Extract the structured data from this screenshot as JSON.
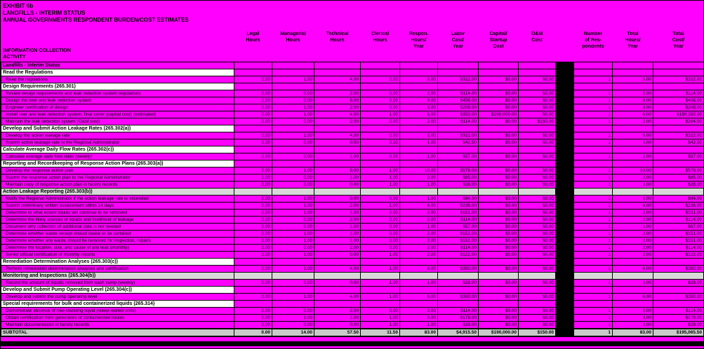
{
  "title_block": {
    "line1": "EXHIBIT 6b",
    "line2": "LANDFILLS - INTERIM STATUS",
    "line3": "ANNUAL GOVERNMENTS RESPONDENT BURDEN/COST ESTIMATES"
  },
  "columns": {
    "activity": "INFORMATION COLLECTION\nACTIVITY",
    "headers": [
      "Legal\nHours",
      "Managerial\nHours",
      "Technical\nHours",
      "Clerical\nHours",
      "Respon.\nHours/\nYear",
      "Labor\nCost/\nYear",
      "Capital/\nStartup\nCost",
      "O&M\nCost",
      "Number\nof Res-\npondents",
      "Total\nHours/\nYear",
      "Total\nCost/\nYear"
    ]
  },
  "colors": {
    "background": "#FF00FF",
    "section_white": "#FFFFFF",
    "section_gray": "#D8D8D8",
    "subtotal_gray": "#C9C9C9",
    "divider_band": "#000000"
  },
  "rows": [
    {
      "type": "title",
      "label": "Landfills - Interim Status"
    },
    {
      "type": "section",
      "tone": "white",
      "label": "Read the Regulations"
    },
    {
      "type": "data",
      "label": "Read the regulations",
      "values": [
        "0.00",
        "1.00",
        "4.00",
        "0.00",
        "5.00",
        "$322.00",
        "$0.00",
        "$0.00",
        "1",
        "5.00",
        "$322.00"
      ]
    },
    {
      "type": "section",
      "tone": "white",
      "label": "Design Requirements (265.301)"
    },
    {
      "type": "data",
      "label": "Review design requirements and leak detection system regulations",
      "values": [
        "0.00",
        "0.00",
        "2.00",
        "0.00",
        "2.00",
        "$114.00",
        "$0.00",
        "$0.00",
        "1",
        "2.00",
        "$114.00"
      ]
    },
    {
      "type": "data",
      "label": "Design the liner and leak detection system",
      "values": [
        "0.00",
        "0.00",
        "8.00",
        "0.00",
        "8.00",
        "$456.00",
        "$0.00",
        "$0.00",
        "1",
        "8.00",
        "$456.00"
      ]
    },
    {
      "type": "data",
      "label": "Engineer certification of design",
      "values": [
        "0.00",
        "1.00",
        "2.00",
        "0.00",
        "3.00",
        "$208.00",
        "$0.00",
        "$0.00",
        "1",
        "3.00",
        "$208.00"
      ]
    },
    {
      "type": "data",
      "label": "Install liner and leak detection system, final cover (capital cost) (estimated)",
      "values": [
        "0.00",
        "1.00",
        "4.00",
        "1.00",
        "6.00",
        "$350.00",
        "$190,000.00",
        "$0.00",
        "1",
        "6.00",
        "$190,350.00"
      ]
    },
    {
      "type": "data",
      "label": "Maintain the leak detection system (O&M cost)",
      "values": [
        "0.00",
        "0.00",
        "2.00",
        "0.00",
        "2.00",
        "$114.00",
        "$0.00",
        "$150.00",
        "1",
        "2.00",
        "$264.00"
      ]
    },
    {
      "type": "section",
      "tone": "white",
      "label": "Develop and Submit Action Leakage Rates (265.302(a))"
    },
    {
      "type": "data",
      "label": "Develop the action leakage rate",
      "values": [
        "0.00",
        "1.00",
        "4.00",
        "0.00",
        "5.00",
        "$322.00",
        "$0.00",
        "$0.00",
        "1",
        "5.00",
        "$322.00"
      ]
    },
    {
      "type": "data",
      "label": "Submit action leakage rate to the Regional Administrator",
      "values": [
        "0.00",
        "0.00",
        "0.50",
        "0.50",
        "1.00",
        "$42.50",
        "$0.00",
        "$0.00",
        "1",
        "1.00",
        "$42.50"
      ]
    },
    {
      "type": "section",
      "tone": "white",
      "label": "Calculate Average Daily Flow Rates (265.302(c))"
    },
    {
      "type": "data",
      "label": "Calculate average daily flow rates (weekly)",
      "values": [
        "0.00",
        "0.00",
        "1.00",
        "0.00",
        "1.00",
        "$57.00",
        "$0.00",
        "$0.00",
        "1",
        "1.00",
        "$57.00"
      ]
    },
    {
      "type": "section",
      "tone": "white",
      "label": "Reporting and Recordkeeping of Response Action Plans (265.303(a))"
    },
    {
      "type": "data",
      "label": "Develop the response action plan",
      "values": [
        "0.00",
        "1.00",
        "8.00",
        "1.00",
        "10.00",
        "$578.00",
        "$0.00",
        "$0.00",
        "1",
        "10.00",
        "$578.00"
      ]
    },
    {
      "type": "data",
      "label": "Submit the response action plan to the Regional Administrator",
      "values": [
        "0.00",
        "0.00",
        "1.00",
        "1.00",
        "2.00",
        "$85.00",
        "$0.00",
        "$0.00",
        "1",
        "2.00",
        "$85.00"
      ]
    },
    {
      "type": "data",
      "label": "Maintain copy of response action plan in facility records",
      "values": [
        "0.00",
        "0.00",
        "0.00",
        "1.00",
        "1.00",
        "$28.00",
        "$0.00",
        "$0.00",
        "1",
        "1.00",
        "$28.00"
      ]
    },
    {
      "type": "section",
      "tone": "gray",
      "label": "Action Leakage Reporting (265.303(b))"
    },
    {
      "type": "data",
      "label": "Notify the Regional Administrator if the action leakage rate is exceeded",
      "values": [
        "0.00",
        "1.00",
        "0.00",
        "0.00",
        "1.00",
        "$94.00",
        "$0.00",
        "$0.00",
        "1",
        "1.00",
        "$94.00"
      ]
    },
    {
      "type": "data",
      "label": "Submit preliminary written assessment within 14 days",
      "values": [
        "0.00",
        "1.00",
        "2.00",
        "1.00",
        "4.00",
        "$236.00",
        "$0.00",
        "$0.00",
        "1",
        "4.00",
        "$236.00"
      ]
    },
    {
      "type": "data",
      "label": "Determine to what extent liquids will continue to be removed",
      "values": [
        "0.00",
        "1.00",
        "1.00",
        "0.00",
        "2.00",
        "$151.00",
        "$0.00",
        "$0.00",
        "1",
        "2.00",
        "$151.00"
      ]
    },
    {
      "type": "data",
      "label": "Determine the likely sources of liquids and likelihood of leakage",
      "values": [
        "0.00",
        "0.00",
        "2.00",
        "0.00",
        "2.00",
        "$114.00",
        "$0.00",
        "$0.00",
        "1",
        "2.00",
        "$114.00"
      ]
    },
    {
      "type": "data",
      "label": "Document why collection of additional data is not needed",
      "values": [
        "0.00",
        "0.00",
        "1.00",
        "0.00",
        "1.00",
        "$57.00",
        "$0.00",
        "$0.00",
        "1",
        "1.00",
        "$57.00"
      ]
    },
    {
      "type": "data",
      "label": "Determine whether waste receipt should cease or be curtailed",
      "values": [
        "0.00",
        "1.00",
        "1.00",
        "0.00",
        "2.00",
        "$151.00",
        "$0.00",
        "$0.00",
        "1",
        "2.00",
        "$151.00"
      ]
    },
    {
      "type": "data",
      "label": "Determine whether any waste should be removed for inspection, repairs",
      "values": [
        "0.00",
        "1.00",
        "1.00",
        "0.00",
        "2.00",
        "$151.00",
        "$0.00",
        "$0.00",
        "1",
        "2.00",
        "$151.00"
      ]
    },
    {
      "type": "data",
      "label": "Determine the location, size, and cause of any leak (monthly)",
      "values": [
        "0.00",
        "0.00",
        "2.00",
        "0.00",
        "2.00",
        "$114.00",
        "$0.00",
        "$0.00",
        "1",
        "2.00",
        "$114.00"
      ]
    },
    {
      "type": "data",
      "label": "Senior official certification of monthly reports",
      "values": [
        "0.00",
        "1.00",
        "0.00",
        "1.00",
        "2.00",
        "$122.00",
        "$0.00",
        "$0.00",
        "1",
        "2.00",
        "$122.00"
      ]
    },
    {
      "type": "section",
      "tone": "white",
      "label": "Remediation Determination Analyses (265.303(c))"
    },
    {
      "type": "data",
      "label": "Perform remediation determination analyses and certification",
      "values": [
        "0.00",
        "1.00",
        "4.00",
        "1.00",
        "6.00",
        "$350.00",
        "$0.00",
        "$0.00",
        "1",
        "6.00",
        "$350.00"
      ]
    },
    {
      "type": "section",
      "tone": "gray",
      "label": "Monitoring and Inspections (265.304(b))"
    },
    {
      "type": "data",
      "label": "Record the amount of liquids removed from each sump (weekly)",
      "values": [
        "0.00",
        "0.00",
        "0.00",
        "1.00",
        "1.00",
        "$28.00",
        "$0.00",
        "$0.00",
        "1",
        "1.00",
        "$28.00"
      ]
    },
    {
      "type": "section",
      "tone": "white",
      "label": "Develop and Submit Pump Operating Level (265.304(c))"
    },
    {
      "type": "data",
      "label": "Develop and submit the pump operating level",
      "values": [
        "0.00",
        "1.00",
        "4.00",
        "1.00",
        "6.00",
        "$350.00",
        "$0.00",
        "$0.00",
        "1",
        "6.00",
        "$350.00"
      ]
    },
    {
      "type": "section",
      "tone": "white",
      "label": "Special requirements for bulk and containerized liquids (265.314)"
    },
    {
      "type": "data",
      "label": "Demonstrate absence of free-standing liquid (steep-walled units)",
      "values": [
        "0.00",
        "0.00",
        "2.00",
        "0.00",
        "2.00",
        "$114.00",
        "$0.00",
        "$0.00",
        "1",
        "2.00",
        "$114.00"
      ]
    },
    {
      "type": "data",
      "label": "Obtain certification from generators of containerized liquids",
      "values": [
        "0.00",
        "1.00",
        "1.00",
        "1.00",
        "3.00",
        "$179.00",
        "$0.00",
        "$0.00",
        "1",
        "3.00",
        "$179.00"
      ]
    },
    {
      "type": "data",
      "label": "Maintain documentation in facility records",
      "values": [
        "0.00",
        "0.00",
        "0.00",
        "1.00",
        "1.00",
        "$28.00",
        "$0.00",
        "$0.00",
        "1",
        "1.00",
        "$28.00"
      ]
    },
    {
      "type": "subtotal",
      "label": "SUBTOTAL",
      "values": [
        "0.00",
        "14.00",
        "57.50",
        "11.50",
        "83.00",
        "$4,915.50",
        "$190,000.00",
        "$150.00",
        "1",
        "83.00",
        "$195,065.50"
      ]
    }
  ]
}
